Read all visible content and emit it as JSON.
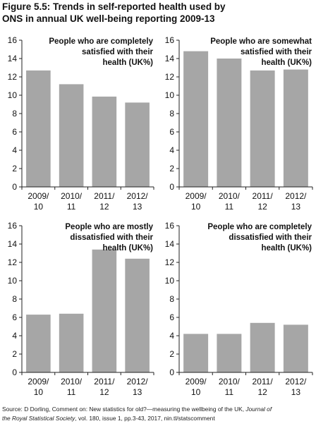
{
  "figure": {
    "title_line1": "Figure 5.5: Trends in self-reported health used by",
    "title_line2": "ONS in annual UK well-being reporting 2009-13",
    "source_part1": "Source: D Dorling, Comment on: New statistics for old?—measuring the wellbeing of the UK, ",
    "source_journal_part1": "Journal of",
    "source_journal_part2": "the Royal Statistical Society",
    "source_part2": ", vol. 180, issue 1, pp.3-43, 2017, nin.tl/statscomment"
  },
  "chart_data": [
    {
      "type": "bar",
      "title_lines": [
        "People who are completely",
        "satisfied with their",
        "health (UK%)"
      ],
      "categories": [
        [
          "2009/",
          "10"
        ],
        [
          "2010/",
          "11"
        ],
        [
          "2011/",
          "12"
        ],
        [
          "2012/",
          "13"
        ]
      ],
      "values": [
        12.7,
        11.2,
        9.85,
        9.2
      ],
      "ylim": [
        0,
        16
      ],
      "yticks": [
        "0",
        "2",
        "4",
        "6",
        "8",
        "10",
        "12",
        "14",
        "16"
      ],
      "bar_color": "#a6a6a6"
    },
    {
      "type": "bar",
      "title_lines": [
        "People who are somewhat",
        "satisfied with their",
        "health (UK%)"
      ],
      "categories": [
        [
          "2009/",
          "10"
        ],
        [
          "2010/",
          "11"
        ],
        [
          "2011/",
          "12"
        ],
        [
          "2012/",
          "13"
        ]
      ],
      "values": [
        14.8,
        14.0,
        12.7,
        12.8
      ],
      "ylim": [
        0,
        16
      ],
      "yticks": [
        "0",
        "2",
        "4",
        "6",
        "8",
        "10",
        "12",
        "14",
        "16"
      ],
      "bar_color": "#a6a6a6"
    },
    {
      "type": "bar",
      "title_lines": [
        "People who are mostly",
        "dissatisfied with their",
        "health (UK%)"
      ],
      "categories": [
        [
          "2009/",
          "10"
        ],
        [
          "2010/",
          "11"
        ],
        [
          "2011/",
          "12"
        ],
        [
          "2012/",
          "13"
        ]
      ],
      "values": [
        6.3,
        6.4,
        13.4,
        12.4
      ],
      "ylim": [
        0,
        16
      ],
      "yticks": [
        "0",
        "2",
        "4",
        "6",
        "8",
        "10",
        "12",
        "14",
        "16"
      ],
      "bar_color": "#a6a6a6"
    },
    {
      "type": "bar",
      "title_lines": [
        "People who are completely",
        "dissatisfied with their",
        "health (UK%)"
      ],
      "categories": [
        [
          "2009/",
          "10"
        ],
        [
          "2010/",
          "11"
        ],
        [
          "2011/",
          "12"
        ],
        [
          "2012/",
          "13"
        ]
      ],
      "values": [
        4.2,
        4.2,
        5.4,
        5.2
      ],
      "ylim": [
        0,
        16
      ],
      "yticks": [
        "0",
        "2",
        "4",
        "6",
        "8",
        "10",
        "12",
        "14",
        "16"
      ],
      "bar_color": "#a6a6a6"
    }
  ]
}
